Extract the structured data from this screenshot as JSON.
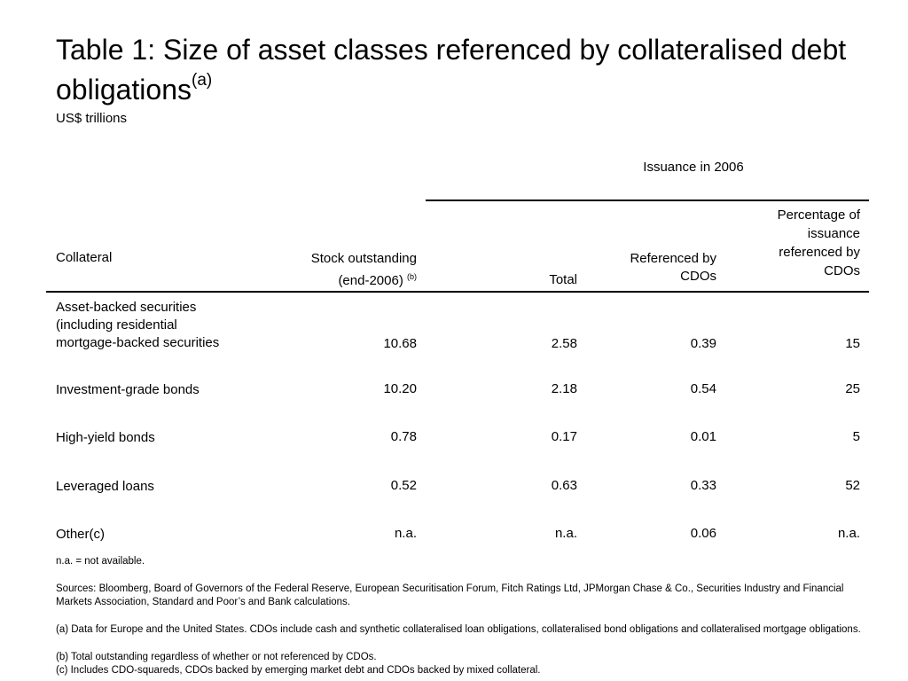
{
  "title": {
    "main": "Table 1:  Size of asset classes referenced by collateralised debt obligations",
    "sup": "(a)"
  },
  "units": "US$ trillions",
  "table": {
    "group_header": "Issuance in 2006",
    "headers": {
      "collateral": "Collateral",
      "stock_line1": "Stock outstanding",
      "stock_line2": "(end-2006)",
      "stock_sup": "(b)",
      "total": "Total",
      "referenced_line1": "Referenced by",
      "referenced_line2": "CDOs",
      "pct_line1": "Percentage of",
      "pct_line2": "issuance",
      "pct_line3": "referenced by",
      "pct_line4": "CDOs"
    },
    "rows": [
      {
        "label_lines": [
          "Asset-backed securities",
          "(including residential",
          "mortgage-backed securities"
        ],
        "stock": "10.68",
        "total": "2.58",
        "referenced": "0.39",
        "pct": "15"
      },
      {
        "label_lines": [
          "Investment-grade bonds"
        ],
        "stock": "10.20",
        "total": "2.18",
        "referenced": "0.54",
        "pct": "25"
      },
      {
        "label_lines": [
          "High-yield bonds"
        ],
        "stock": "0.78",
        "total": "0.17",
        "referenced": "0.01",
        "pct": "5"
      },
      {
        "label_lines": [
          "Leveraged loans"
        ],
        "stock": "0.52",
        "total": "0.63",
        "referenced": "0.33",
        "pct": "52"
      },
      {
        "label_lines": [
          "Other(c)"
        ],
        "stock": "n.a.",
        "total": "n.a.",
        "referenced": "0.06",
        "pct": "n.a."
      }
    ]
  },
  "notes": {
    "na": "n.a. = not available.",
    "sources": "Sources:  Bloomberg, Board of Governors of the Federal Reserve, European Securitisation Forum, Fitch Ratings Ltd, JPMorgan Chase & Co., Securities Industry and Financial Markets Association, Standard and Poor’s and Bank calculations.",
    "a": "(a)  Data for Europe and the United States.  CDOs include cash and synthetic collateralised loan obligations, collateralised bond obligations and collateralised mortgage obligations.",
    "b": "(b)  Total outstanding regardless of whether or not referenced by CDOs.",
    "c": "(c)  Includes CDO-squareds, CDOs backed by emerging market  debt and CDOs backed by mixed collateral."
  }
}
